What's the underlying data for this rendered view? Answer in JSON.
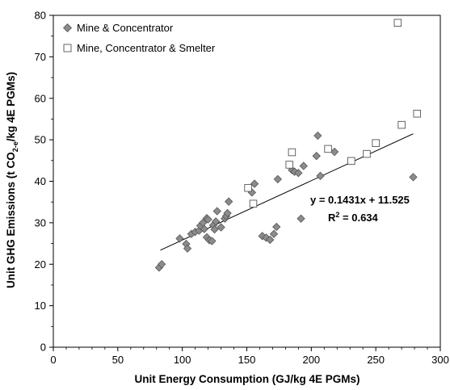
{
  "chart_data": {
    "type": "scatter",
    "xlabel": "Unit Energy Consumption (GJ/kg 4E PGMs)",
    "ylabel": {
      "main": "Unit GHG Emissions (t CO",
      "subscript": "2-e",
      "rest": "/kg 4E PGMs)"
    },
    "xlim": [
      0,
      300
    ],
    "ylim": [
      0,
      80
    ],
    "xticks": [
      "0",
      "50",
      "100",
      "150",
      "200",
      "250",
      "300"
    ],
    "yticks": [
      "0",
      "10",
      "20",
      "30",
      "40",
      "50",
      "60",
      "70",
      "80"
    ],
    "legend_position": "top-left",
    "series": [
      {
        "name": "Mine & Concentrator",
        "marker": "diamond",
        "color": "#8c8c8c",
        "points": [
          [
            82,
            19.2
          ],
          [
            84,
            20
          ],
          [
            98,
            26.2
          ],
          [
            103,
            24.9
          ],
          [
            104,
            23.8
          ],
          [
            107,
            27.3
          ],
          [
            110,
            27.8
          ],
          [
            113,
            28.1
          ],
          [
            114,
            29.3
          ],
          [
            116,
            30
          ],
          [
            117,
            28.5
          ],
          [
            119,
            31.1
          ],
          [
            119,
            26.5
          ],
          [
            120,
            30.8
          ],
          [
            121,
            25.8
          ],
          [
            123,
            25.6
          ],
          [
            124,
            29.4
          ],
          [
            125,
            28.4
          ],
          [
            126,
            30.3
          ],
          [
            127,
            32.8
          ],
          [
            130,
            28.9
          ],
          [
            133,
            31
          ],
          [
            134,
            31.6
          ],
          [
            135,
            32.3
          ],
          [
            136,
            35.1
          ],
          [
            154,
            37.3
          ],
          [
            156,
            39.4
          ],
          [
            162,
            26.8
          ],
          [
            165,
            26.4
          ],
          [
            168,
            25.9
          ],
          [
            171,
            27.3
          ],
          [
            173,
            29
          ],
          [
            174,
            40.5
          ],
          [
            185,
            42.7
          ],
          [
            187,
            42.3
          ],
          [
            190,
            42
          ],
          [
            192,
            31
          ],
          [
            194,
            43.7
          ],
          [
            204,
            46.1
          ],
          [
            205,
            51
          ],
          [
            207,
            41.3
          ],
          [
            218,
            47.1
          ],
          [
            279,
            41
          ]
        ]
      },
      {
        "name": "Mine, Concentrator & Smelter",
        "marker": "square",
        "color": "#ffffff",
        "points": [
          [
            151,
            38.4
          ],
          [
            155,
            34.6
          ],
          [
            183,
            44
          ],
          [
            185,
            47
          ],
          [
            213,
            47.8
          ],
          [
            231,
            44.9
          ],
          [
            243,
            46.6
          ],
          [
            250,
            49.2
          ],
          [
            267,
            78.2
          ],
          [
            270,
            53.6
          ],
          [
            282,
            56.3
          ]
        ]
      }
    ],
    "trendline": {
      "slope": 0.1431,
      "intercept": 11.525,
      "x_range": [
        83,
        279
      ],
      "equation": "y = 0.1431x + 11.525",
      "r2_label": "R",
      "r2_sup": "2",
      "r2_value": " = 0.634"
    }
  }
}
